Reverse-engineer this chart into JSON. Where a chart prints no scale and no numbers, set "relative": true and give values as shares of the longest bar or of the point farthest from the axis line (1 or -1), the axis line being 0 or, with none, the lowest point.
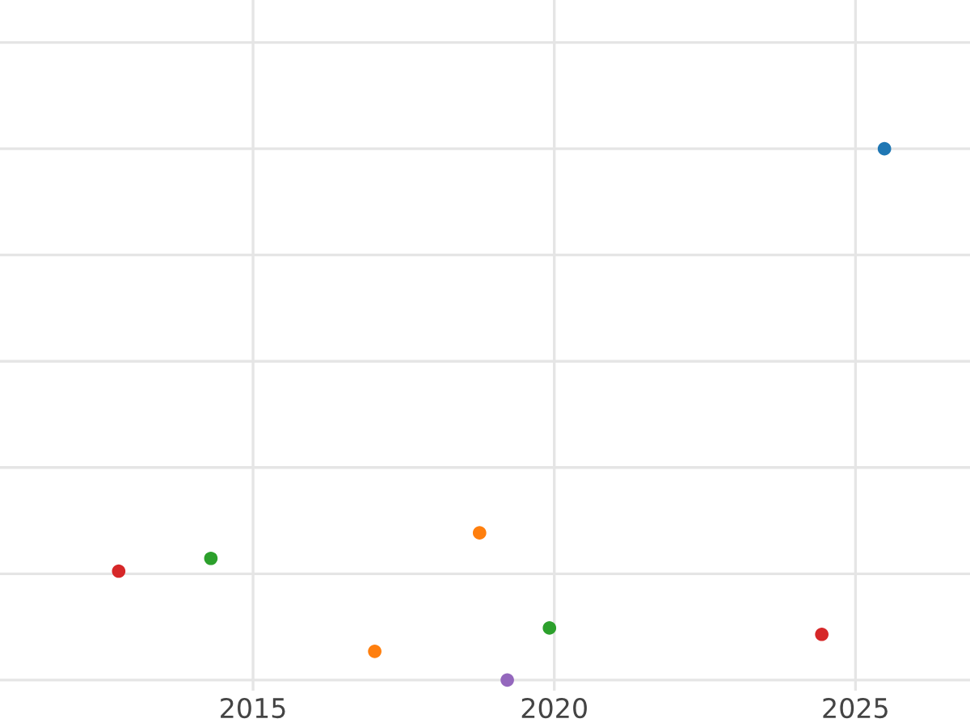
{
  "chart_data": {
    "type": "scatter",
    "x": [
      2012.77,
      2014.3,
      2017.02,
      2018.76,
      2019.22,
      2019.92,
      2024.44,
      2025.48
    ],
    "values": [
      0.205,
      0.229,
      0.054,
      0.277,
      0,
      0.098,
      0.086,
      1
    ],
    "colors": [
      "#d62728",
      "#2ca02c",
      "#ff7f0e",
      "#ff7f0e",
      "#9467bd",
      "#2ca02c",
      "#d62728",
      "#1f77b4"
    ],
    "relative": true,
    "xlim": [
      2010.8,
      2026.9
    ],
    "xticks": [
      2015,
      2020,
      2025
    ],
    "grid": true,
    "marker": "circle"
  }
}
